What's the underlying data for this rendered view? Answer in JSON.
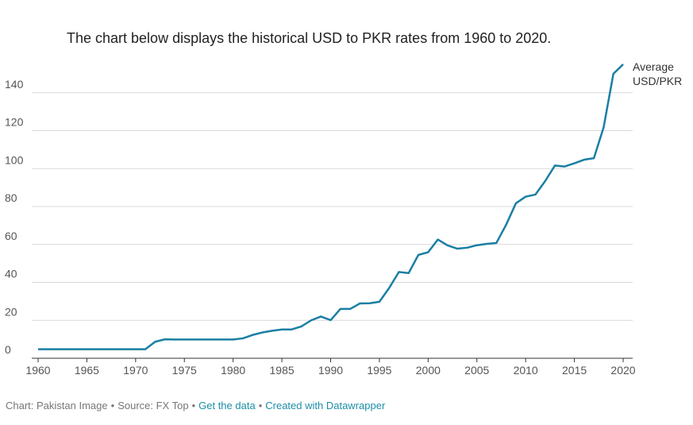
{
  "chart_data": {
    "type": "line",
    "title": "The chart below displays the historical USD to PKR rates from 1960 to 2020.",
    "x": [
      1960,
      1961,
      1962,
      1963,
      1964,
      1965,
      1966,
      1967,
      1968,
      1969,
      1970,
      1971,
      1972,
      1973,
      1974,
      1975,
      1976,
      1977,
      1978,
      1979,
      1980,
      1981,
      1982,
      1983,
      1984,
      1985,
      1986,
      1987,
      1988,
      1989,
      1990,
      1991,
      1992,
      1993,
      1994,
      1995,
      1996,
      1997,
      1998,
      1999,
      2000,
      2001,
      2002,
      2003,
      2004,
      2005,
      2006,
      2007,
      2008,
      2009,
      2010,
      2011,
      2012,
      2013,
      2014,
      2015,
      2016,
      2017,
      2018,
      2019,
      2020
    ],
    "series": [
      {
        "name": "Average USD/PKR",
        "color": "#1a7fa3",
        "values": [
          4.76,
          4.76,
          4.76,
          4.76,
          4.76,
          4.76,
          4.76,
          4.76,
          4.76,
          4.76,
          4.76,
          4.76,
          8.7,
          9.99,
          9.9,
          9.9,
          9.9,
          9.9,
          9.9,
          9.9,
          9.9,
          10.5,
          12.3,
          13.6,
          14.5,
          15.2,
          15.2,
          16.8,
          20,
          22,
          20.1,
          26,
          26,
          28.9,
          29,
          29.8,
          37,
          45.5,
          44.9,
          54.5,
          55.9,
          62.6,
          59.5,
          57.8,
          58.3,
          59.6,
          60.3,
          60.8,
          70.4,
          81.7,
          85.2,
          86.3,
          93.4,
          101.6,
          101.1,
          102.8,
          104.7,
          105.5,
          121.8,
          150,
          155
        ]
      }
    ],
    "xlim": [
      1960,
      2020
    ],
    "xticks": [
      1960,
      1965,
      1970,
      1975,
      1980,
      1985,
      1990,
      1995,
      2000,
      2005,
      2010,
      2015,
      2020
    ],
    "ylim": [
      0,
      160
    ],
    "yticks": [
      0,
      20,
      40,
      60,
      80,
      100,
      120,
      140
    ],
    "grid": true,
    "footer": {
      "items": [
        "Chart: Pakistan Image",
        "Source: FX Top",
        "Get the data",
        "Created with Datawrapper"
      ],
      "links": [
        false,
        false,
        true,
        true
      ],
      "separator": "•"
    }
  }
}
